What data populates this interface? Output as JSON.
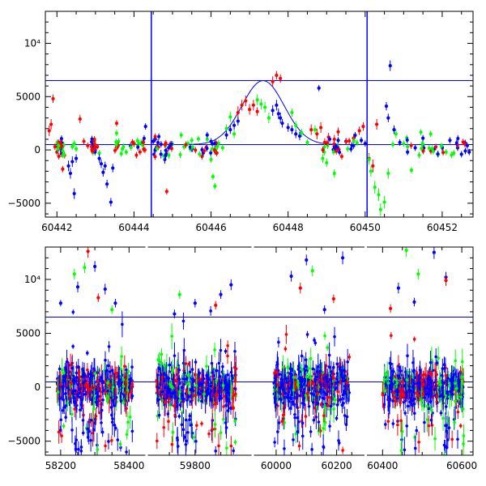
{
  "chart_data": [
    {
      "type": "scatter",
      "panel": "top",
      "xlim": [
        60441.7,
        60452.8
      ],
      "ylim": [
        -6300,
        13000
      ],
      "xticks": [
        60442,
        60444,
        60446,
        60448,
        60450,
        60452
      ],
      "xtick_labels": [
        "60442",
        "60444",
        "60446",
        "60448",
        "60450",
        "60452"
      ],
      "yticks": [
        -5000,
        0,
        5000,
        10000
      ],
      "ytick_labels": [
        "−5000",
        "0",
        "5000",
        "10⁴"
      ],
      "grid": false,
      "colors": {
        "red": "#ff0000",
        "green": "#00ff00",
        "blue": "#0000ff"
      },
      "reference_lines": {
        "horizontal": [
          6500,
          500
        ],
        "vertical": [
          60444.45,
          60450.05
        ],
        "color": "#0000ff"
      },
      "model_curve": {
        "peak_x": 60447.35,
        "peak_y": 6500,
        "baseline": 500,
        "sigma": 0.55,
        "color": "#0000ff"
      },
      "series": [
        {
          "color": "red",
          "points": [
            [
              60441.8,
              1800,
              500
            ],
            [
              60441.85,
              2400,
              500
            ],
            [
              60441.9,
              4800,
              400
            ],
            [
              60441.95,
              300,
              300
            ],
            [
              60442.0,
              -200,
              300
            ],
            [
              60442.05,
              -600,
              300
            ],
            [
              60442.1,
              200,
              300
            ],
            [
              60442.15,
              -1800,
              300
            ],
            [
              60442.6,
              2900,
              400
            ],
            [
              60442.7,
              800,
              300
            ],
            [
              60442.8,
              400,
              300
            ],
            [
              60442.9,
              300,
              300
            ],
            [
              60443.05,
              300,
              250
            ],
            [
              60443.55,
              2500,
              300
            ],
            [
              60444.85,
              -3900,
              300
            ],
            [
              60446.7,
              3500,
              600
            ],
            [
              60446.8,
              4200,
              500
            ],
            [
              60446.9,
              4600,
              500
            ],
            [
              60447.0,
              3800,
              500
            ],
            [
              60447.1,
              4200,
              500
            ],
            [
              60447.2,
              3600,
              400
            ],
            [
              60447.6,
              6400,
              500
            ],
            [
              60447.7,
              7000,
              400
            ],
            [
              60447.8,
              6700,
              400
            ],
            [
              60448.6,
              1900,
              500
            ],
            [
              60448.75,
              1500,
              500
            ],
            [
              60448.85,
              2100,
              500
            ],
            [
              60448.95,
              700,
              400
            ],
            [
              60449.05,
              1200,
              400
            ],
            [
              60449.2,
              1000,
              400
            ],
            [
              60449.3,
              1700,
              400
            ],
            [
              60449.7,
              1100,
              400
            ],
            [
              60449.85,
              1800,
              400
            ],
            [
              60449.95,
              2200,
              400
            ],
            [
              60450.1,
              -800,
              500
            ],
            [
              60450.2,
              -1500,
              600
            ],
            [
              60450.3,
              2400,
              500
            ],
            [
              60446.15,
              -300,
              300
            ]
          ]
        },
        {
          "color": "green",
          "points": [
            [
              60442.4,
              300,
              300
            ],
            [
              60442.45,
              600,
              300
            ],
            [
              60442.5,
              100,
              300
            ],
            [
              60443.1,
              -300,
              300
            ],
            [
              60443.6,
              800,
              300
            ],
            [
              60443.7,
              100,
              300
            ],
            [
              60443.8,
              -200,
              300
            ],
            [
              60444.1,
              400,
              300
            ],
            [
              60444.2,
              700,
              300
            ],
            [
              60445.3,
              300,
              300
            ],
            [
              60445.4,
              600,
              300
            ],
            [
              60445.5,
              900,
              300
            ],
            [
              60445.7,
              -400,
              300
            ],
            [
              60445.9,
              1000,
              300
            ],
            [
              60446.0,
              -900,
              300
            ],
            [
              60446.05,
              -2500,
              300
            ],
            [
              60446.1,
              -3400,
              300
            ],
            [
              60446.3,
              200,
              300
            ],
            [
              60446.4,
              2000,
              400
            ],
            [
              60446.5,
              3100,
              500
            ],
            [
              60446.6,
              1500,
              400
            ],
            [
              60447.2,
              4700,
              500
            ],
            [
              60447.3,
              4300,
              500
            ],
            [
              60447.4,
              4000,
              500
            ],
            [
              60447.5,
              3000,
              500
            ],
            [
              60448.1,
              3500,
              400
            ],
            [
              60448.2,
              2300,
              400
            ],
            [
              60448.35,
              1600,
              400
            ],
            [
              60448.5,
              700,
              300
            ],
            [
              60448.7,
              1900,
              400
            ],
            [
              60448.9,
              -800,
              400
            ],
            [
              60449.0,
              -1200,
              400
            ],
            [
              60449.2,
              -2200,
              400
            ],
            [
              60450.1,
              -900,
              500
            ],
            [
              60450.15,
              -2000,
              500
            ],
            [
              60450.25,
              -3500,
              600
            ],
            [
              60450.35,
              -4200,
              600
            ],
            [
              60450.4,
              -5600,
              600
            ],
            [
              60450.5,
              -4900,
              600
            ],
            [
              60450.6,
              -2200,
              500
            ],
            [
              60450.8,
              1500,
              400
            ],
            [
              60451.0,
              600,
              300
            ],
            [
              60451.1,
              300,
              300
            ],
            [
              60451.2,
              -1900,
              300
            ],
            [
              60451.5,
              500,
              300
            ],
            [
              60451.7,
              1500,
              300
            ],
            [
              60451.9,
              -400,
              300
            ],
            [
              60452.0,
              300,
              300
            ],
            [
              60452.1,
              -200,
              300
            ],
            [
              60452.3,
              -300,
              300
            ]
          ]
        },
        {
          "color": "blue",
          "points": [
            [
              60442.3,
              -1500,
              500
            ],
            [
              60442.35,
              -2200,
              500
            ],
            [
              60442.4,
              -1100,
              500
            ],
            [
              60442.45,
              -4100,
              500
            ],
            [
              60442.5,
              -800,
              400
            ],
            [
              60443.1,
              -800,
              400
            ],
            [
              60443.15,
              -1300,
              400
            ],
            [
              60443.2,
              -2100,
              400
            ],
            [
              60443.25,
              -1500,
              400
            ],
            [
              60443.3,
              -3200,
              400
            ],
            [
              60443.4,
              -4900,
              400
            ],
            [
              60443.45,
              -1700,
              400
            ],
            [
              60444.3,
              2200,
              300
            ],
            [
              60444.5,
              800,
              300
            ],
            [
              60444.6,
              300,
              300
            ],
            [
              60444.7,
              -400,
              400
            ],
            [
              60444.8,
              -900,
              400
            ],
            [
              60444.9,
              200,
              300
            ],
            [
              60445.5,
              100,
              300
            ],
            [
              60445.9,
              1400,
              300
            ],
            [
              60446.0,
              800,
              300
            ],
            [
              60446.4,
              1400,
              400
            ],
            [
              60446.5,
              1900,
              400
            ],
            [
              60446.6,
              2300,
              400
            ],
            [
              60446.7,
              2700,
              400
            ],
            [
              60447.6,
              3700,
              500
            ],
            [
              60447.7,
              4200,
              500
            ],
            [
              60447.75,
              3400,
              500
            ],
            [
              60447.8,
              3000,
              500
            ],
            [
              60447.85,
              2500,
              400
            ],
            [
              60448.0,
              2100,
              400
            ],
            [
              60448.1,
              1900,
              400
            ],
            [
              60448.2,
              1500,
              400
            ],
            [
              60448.3,
              1300,
              400
            ],
            [
              60448.8,
              5800,
              300
            ],
            [
              60449.2,
              300,
              300
            ],
            [
              60449.3,
              900,
              300
            ],
            [
              60449.5,
              800,
              300
            ],
            [
              60449.7,
              400,
              300
            ],
            [
              60449.9,
              900,
              300
            ],
            [
              60450.0,
              600,
              300
            ],
            [
              60450.55,
              4100,
              400
            ],
            [
              60450.6,
              3000,
              400
            ],
            [
              60450.65,
              7900,
              500
            ],
            [
              60450.75,
              1900,
              400
            ],
            [
              60450.9,
              700,
              300
            ],
            [
              60451.1,
              -200,
              300
            ],
            [
              60451.3,
              200,
              300
            ],
            [
              60451.5,
              1100,
              300
            ],
            [
              60451.8,
              100,
              300
            ],
            [
              60452.0,
              200,
              300
            ],
            [
              60452.2,
              900,
              300
            ],
            [
              60452.4,
              200,
              300
            ],
            [
              60452.5,
              -400,
              300
            ],
            [
              60452.6,
              -100,
              300
            ],
            [
              60452.65,
              400,
              300
            ],
            [
              60452.7,
              -200,
              300
            ]
          ]
        }
      ]
    },
    {
      "type": "scatter",
      "panel": "bottom",
      "segments": [
        {
          "label_range": [
            58160,
            58430
          ],
          "xlim": [
            58160,
            58430
          ]
        },
        {
          "label_range": [
            59720,
            59890
          ],
          "xlim": [
            59720,
            59890
          ]
        },
        {
          "label_range": [
            59960,
            60260
          ],
          "xlim": [
            59960,
            60260
          ]
        },
        {
          "label_range": [
            60385,
            60610
          ],
          "xlim": [
            60385,
            60610
          ]
        }
      ],
      "ylim": [
        -6300,
        13000
      ],
      "xticks": [
        58200,
        58400,
        59800,
        60000,
        60200,
        60400,
        60600
      ],
      "xtick_labels": [
        "58200",
        "58400",
        "59800",
        "60000",
        "60200",
        "60400",
        "60600"
      ],
      "yticks": [
        -5000,
        0,
        5000,
        10000
      ],
      "ytick_labels": [
        "−5000",
        "0",
        "5000",
        "10⁴"
      ],
      "grid": false,
      "reference_lines": {
        "horizontal": [
          6500,
          500
        ],
        "color": "#0000ff"
      },
      "series": [
        {
          "color": "blue",
          "points": [
            [
              58200,
              7800,
              300
            ],
            [
              58250,
              9300,
              500
            ],
            [
              58300,
              11200,
              500
            ],
            [
              58330,
              9100,
              500
            ],
            [
              58360,
              7800,
              400
            ],
            [
              59760,
              6800,
              400
            ],
            [
              59800,
              7800,
              400
            ],
            [
              59850,
              8600,
              400
            ],
            [
              59870,
              9500,
              500
            ],
            [
              60050,
              10300,
              500
            ],
            [
              60100,
              11800,
              500
            ],
            [
              60160,
              7200,
              400
            ],
            [
              60220,
              12000,
              600
            ],
            [
              60440,
              9200,
              500
            ],
            [
              60480,
              7900,
              400
            ],
            [
              60530,
              12500,
              600
            ],
            [
              60560,
              10200,
              500
            ]
          ]
        },
        {
          "color": "green",
          "points": [
            [
              58240,
              10500,
              500
            ],
            [
              58270,
              11100,
              500
            ],
            [
              58350,
              7200,
              400
            ],
            [
              59770,
              8600,
              400
            ],
            [
              60120,
              10800,
              500
            ],
            [
              60460,
              12700,
              600
            ],
            [
              60490,
              10500,
              500
            ]
          ]
        },
        {
          "color": "red",
          "points": [
            [
              58280,
              12600,
              600
            ],
            [
              58310,
              8300,
              400
            ],
            [
              59840,
              7600,
              400
            ],
            [
              60080,
              9200,
              500
            ],
            [
              60190,
              8200,
              400
            ],
            [
              60420,
              7300,
              400
            ],
            [
              60560,
              9900,
              500
            ]
          ]
        }
      ]
    }
  ]
}
